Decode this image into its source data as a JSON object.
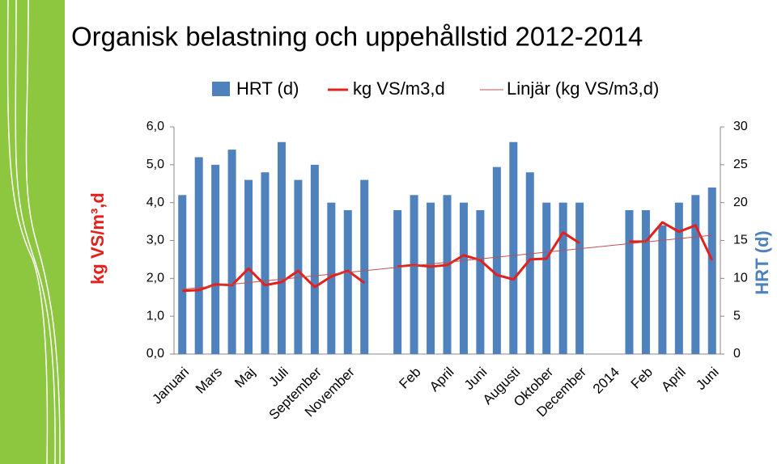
{
  "chart_data": {
    "type": "bar_line",
    "title": "Organisk belastning och uppehållstid 2012-2014",
    "y_label": "kg VS/m³,d",
    "y2_label": "HRT (d)",
    "categories": [
      "Januari",
      null,
      "Mars",
      null,
      "Maj",
      null,
      "Juli",
      null,
      "September",
      null,
      "November",
      null,
      null,
      null,
      "Feb",
      null,
      "April",
      null,
      "Juni",
      null,
      "Augusti",
      null,
      "Oktober",
      null,
      "December",
      null,
      "2014",
      null,
      "Feb",
      null,
      "April",
      null,
      "Juni"
    ],
    "series": [
      {
        "name": "HRT (d)",
        "type": "bar",
        "axis": "y2",
        "color": "#4f81bd",
        "values": [
          21,
          26,
          25,
          27,
          23,
          24,
          28,
          23,
          25,
          20,
          19,
          23,
          null,
          19,
          21,
          20,
          21,
          20,
          19,
          24.7,
          28,
          24,
          20,
          20,
          20,
          null,
          null,
          19,
          19,
          17,
          20,
          21,
          22
        ]
      },
      {
        "name": "kg VS/m3,d",
        "type": "line",
        "color": "#e3201b",
        "values": [
          1.67,
          1.69,
          1.84,
          1.82,
          2.26,
          1.82,
          1.9,
          2.2,
          1.77,
          2.05,
          2.2,
          1.88,
          null,
          2.31,
          2.35,
          2.31,
          2.35,
          2.61,
          2.48,
          2.09,
          1.97,
          2.5,
          2.52,
          3.21,
          2.93,
          null,
          null,
          2.97,
          2.97,
          3.48,
          3.23,
          3.4,
          2.48
        ]
      }
    ],
    "trendline": {
      "name": "Linjär (kg VS/m3,d)",
      "color": "#c0504d",
      "start": 1.71,
      "end": 3.14
    },
    "ylim": [
      0,
      6
    ],
    "yticks": [
      {
        "value": 0,
        "label": "0,0"
      },
      {
        "value": 1,
        "label": "1,0"
      },
      {
        "value": 2,
        "label": "2,0"
      },
      {
        "value": 3,
        "label": "3,0"
      },
      {
        "value": 4,
        "label": "4,0"
      },
      {
        "value": 5,
        "label": "5,0"
      },
      {
        "value": 6,
        "label": "6,0"
      }
    ],
    "y2lim": [
      0,
      30
    ],
    "y2ticks": [
      0,
      5,
      10,
      15,
      20,
      25,
      30
    ]
  }
}
